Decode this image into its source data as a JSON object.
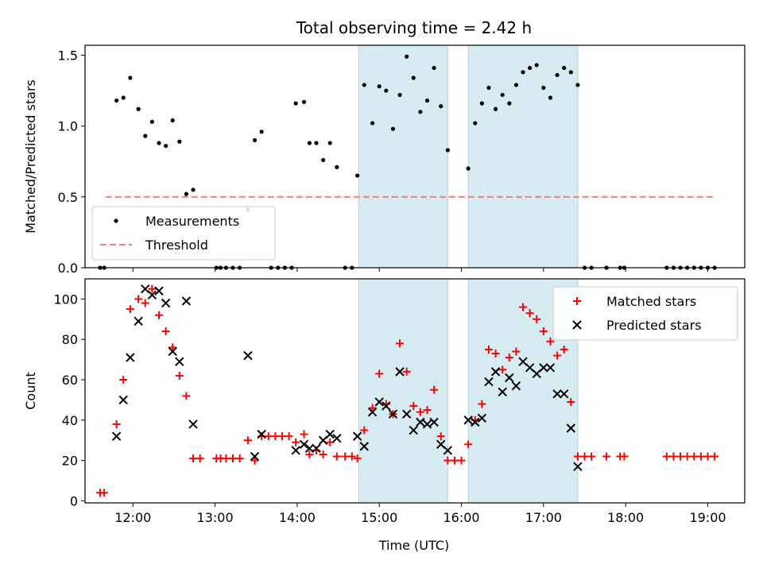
{
  "chart_data": {
    "type": "scatter",
    "title": "Total observing time = 2.42 h",
    "xlabel": "Time (UTC)",
    "x_ticks": [
      "12:00",
      "13:00",
      "14:00",
      "15:00",
      "16:00",
      "17:00",
      "18:00",
      "19:00"
    ],
    "xlim": [
      "11:25",
      "19:27"
    ],
    "shaded_intervals": [
      [
        "14:45",
        "15:50"
      ],
      [
        "16:05",
        "17:25"
      ]
    ],
    "shade_color": "#add8e6",
    "panels": [
      {
        "ylabel": "Matched/Predicted stars",
        "ylim": [
          0,
          1.57
        ],
        "y_ticks": [
          "0.0",
          "0.5",
          "1.0",
          "1.5"
        ],
        "threshold": 0.5,
        "threshold_color": "#f08080",
        "legend_position": "lower-left",
        "series": [
          {
            "name": "Measurements",
            "marker": "dot",
            "color": "#000000",
            "points": [
              [
                "11:36",
                0
              ],
              [
                "11:39",
                0
              ],
              [
                "11:48",
                1.18
              ],
              [
                "11:53",
                1.2
              ],
              [
                "11:58",
                1.34
              ],
              [
                "12:04",
                1.12
              ],
              [
                "12:09",
                0.93
              ],
              [
                "12:14",
                1.03
              ],
              [
                "12:19",
                0.88
              ],
              [
                "12:24",
                0.86
              ],
              [
                "12:29",
                1.04
              ],
              [
                "12:34",
                0.89
              ],
              [
                "12:39",
                0.52
              ],
              [
                "12:44",
                0.55
              ],
              [
                "13:01",
                0
              ],
              [
                "13:04",
                0
              ],
              [
                "13:08",
                0
              ],
              [
                "13:13",
                0
              ],
              [
                "13:18",
                0
              ],
              [
                "13:24",
                0.41
              ],
              [
                "13:29",
                0.9
              ],
              [
                "13:34",
                0.96
              ],
              [
                "13:41",
                0
              ],
              [
                "13:46",
                0
              ],
              [
                "13:51",
                0
              ],
              [
                "13:56",
                0
              ],
              [
                "13:59",
                1.16
              ],
              [
                "14:05",
                1.17
              ],
              [
                "14:09",
                0.88
              ],
              [
                "14:14",
                0.88
              ],
              [
                "14:19",
                0.76
              ],
              [
                "14:24",
                0.88
              ],
              [
                "14:29",
                0.71
              ],
              [
                "14:35",
                0
              ],
              [
                "14:40",
                0
              ],
              [
                "14:44",
                0.65
              ],
              [
                "14:49",
                1.29
              ],
              [
                "14:55",
                1.02
              ],
              [
                "15:00",
                1.28
              ],
              [
                "15:05",
                1.25
              ],
              [
                "15:10",
                0.98
              ],
              [
                "15:15",
                1.22
              ],
              [
                "15:20",
                1.49
              ],
              [
                "15:25",
                1.34
              ],
              [
                "15:30",
                1.1
              ],
              [
                "15:35",
                1.18
              ],
              [
                "15:40",
                1.41
              ],
              [
                "15:45",
                1.14
              ],
              [
                "15:50",
                0.83
              ],
              [
                "16:05",
                0.7
              ],
              [
                "16:10",
                1.02
              ],
              [
                "16:15",
                1.16
              ],
              [
                "16:20",
                1.27
              ],
              [
                "16:25",
                1.12
              ],
              [
                "16:30",
                1.22
              ],
              [
                "16:35",
                1.16
              ],
              [
                "16:40",
                1.29
              ],
              [
                "16:45",
                1.38
              ],
              [
                "16:50",
                1.41
              ],
              [
                "16:55",
                1.43
              ],
              [
                "17:00",
                1.27
              ],
              [
                "17:05",
                1.2
              ],
              [
                "17:10",
                1.36
              ],
              [
                "17:15",
                1.41
              ],
              [
                "17:20",
                1.38
              ],
              [
                "17:25",
                1.29
              ],
              [
                "17:30",
                0
              ],
              [
                "17:35",
                0
              ],
              [
                "17:46",
                0
              ],
              [
                "17:56",
                0
              ],
              [
                "17:59",
                0
              ],
              [
                "18:30",
                0
              ],
              [
                "18:35",
                0
              ],
              [
                "18:40",
                0
              ],
              [
                "18:45",
                0
              ],
              [
                "18:50",
                0
              ],
              [
                "18:55",
                0
              ],
              [
                "19:00",
                0
              ],
              [
                "19:05",
                0
              ]
            ]
          }
        ],
        "reference_lines": [
          {
            "name": "Threshold",
            "style": "dashed",
            "y": 0.5,
            "x_range": [
              "11:40",
              "19:05"
            ]
          }
        ]
      },
      {
        "ylabel": "Count",
        "ylim": [
          -1,
          110
        ],
        "y_ticks": [
          "0",
          "20",
          "40",
          "60",
          "80",
          "100"
        ],
        "legend_position": "upper-right",
        "series": [
          {
            "name": "Matched stars",
            "marker": "plus",
            "color": "#ff0000",
            "points": [
              [
                "11:36",
                4
              ],
              [
                "11:39",
                4
              ],
              [
                "11:48",
                38
              ],
              [
                "11:53",
                60
              ],
              [
                "11:58",
                95
              ],
              [
                "12:04",
                100
              ],
              [
                "12:09",
                98
              ],
              [
                "12:14",
                105
              ],
              [
                "12:19",
                92
              ],
              [
                "12:24",
                84
              ],
              [
                "12:29",
                76
              ],
              [
                "12:34",
                62
              ],
              [
                "12:39",
                52
              ],
              [
                "12:44",
                21
              ],
              [
                "12:49",
                21
              ],
              [
                "13:01",
                21
              ],
              [
                "13:04",
                21
              ],
              [
                "13:08",
                21
              ],
              [
                "13:13",
                21
              ],
              [
                "13:18",
                21
              ],
              [
                "13:24",
                30
              ],
              [
                "13:29",
                20
              ],
              [
                "13:34",
                32
              ],
              [
                "13:39",
                32
              ],
              [
                "13:44",
                32
              ],
              [
                "13:49",
                32
              ],
              [
                "13:54",
                32
              ],
              [
                "13:59",
                29
              ],
              [
                "14:05",
                33
              ],
              [
                "14:09",
                23
              ],
              [
                "14:14",
                25
              ],
              [
                "14:19",
                23
              ],
              [
                "14:24",
                29
              ],
              [
                "14:29",
                22
              ],
              [
                "14:35",
                22
              ],
              [
                "14:40",
                22
              ],
              [
                "14:44",
                21
              ],
              [
                "14:49",
                35
              ],
              [
                "14:55",
                46
              ],
              [
                "15:00",
                63
              ],
              [
                "15:05",
                48
              ],
              [
                "15:10",
                43
              ],
              [
                "15:15",
                78
              ],
              [
                "15:20",
                64
              ],
              [
                "15:25",
                47
              ],
              [
                "15:30",
                44
              ],
              [
                "15:35",
                45
              ],
              [
                "15:40",
                55
              ],
              [
                "15:45",
                32
              ],
              [
                "15:50",
                20
              ],
              [
                "15:55",
                20
              ],
              [
                "16:00",
                20
              ],
              [
                "16:05",
                28
              ],
              [
                "16:10",
                40
              ],
              [
                "16:15",
                48
              ],
              [
                "16:20",
                75
              ],
              [
                "16:25",
                73
              ],
              [
                "16:30",
                65
              ],
              [
                "16:35",
                71
              ],
              [
                "16:40",
                74
              ],
              [
                "16:45",
                96
              ],
              [
                "16:50",
                93
              ],
              [
                "16:55",
                90
              ],
              [
                "17:00",
                84
              ],
              [
                "17:05",
                79
              ],
              [
                "17:10",
                72
              ],
              [
                "17:15",
                75
              ],
              [
                "17:20",
                49
              ],
              [
                "17:25",
                22
              ],
              [
                "17:30",
                22
              ],
              [
                "17:35",
                22
              ],
              [
                "17:46",
                22
              ],
              [
                "17:56",
                22
              ],
              [
                "17:59",
                22
              ],
              [
                "18:30",
                22
              ],
              [
                "18:35",
                22
              ],
              [
                "18:40",
                22
              ],
              [
                "18:45",
                22
              ],
              [
                "18:50",
                22
              ],
              [
                "18:55",
                22
              ],
              [
                "19:00",
                22
              ],
              [
                "19:05",
                22
              ]
            ]
          },
          {
            "name": "Predicted stars",
            "marker": "x",
            "color": "#000000",
            "points": [
              [
                "11:48",
                32
              ],
              [
                "11:53",
                50
              ],
              [
                "11:58",
                71
              ],
              [
                "12:04",
                89
              ],
              [
                "12:09",
                105
              ],
              [
                "12:14",
                102
              ],
              [
                "12:19",
                104
              ],
              [
                "12:24",
                98
              ],
              [
                "12:29",
                74
              ],
              [
                "12:34",
                69
              ],
              [
                "12:39",
                99
              ],
              [
                "12:44",
                38
              ],
              [
                "13:24",
                72
              ],
              [
                "13:29",
                22
              ],
              [
                "13:34",
                33
              ],
              [
                "13:59",
                25
              ],
              [
                "14:05",
                28
              ],
              [
                "14:09",
                26
              ],
              [
                "14:14",
                26
              ],
              [
                "14:19",
                30
              ],
              [
                "14:24",
                33
              ],
              [
                "14:29",
                31
              ],
              [
                "14:44",
                32
              ],
              [
                "14:49",
                27
              ],
              [
                "14:55",
                44
              ],
              [
                "15:00",
                49
              ],
              [
                "15:05",
                47
              ],
              [
                "15:10",
                43
              ],
              [
                "15:15",
                64
              ],
              [
                "15:20",
                43
              ],
              [
                "15:25",
                35
              ],
              [
                "15:30",
                39
              ],
              [
                "15:35",
                38
              ],
              [
                "15:40",
                39
              ],
              [
                "15:45",
                28
              ],
              [
                "15:50",
                25
              ],
              [
                "16:05",
                40
              ],
              [
                "16:10",
                39
              ],
              [
                "16:15",
                41
              ],
              [
                "16:20",
                59
              ],
              [
                "16:25",
                64
              ],
              [
                "16:30",
                54
              ],
              [
                "16:35",
                61
              ],
              [
                "16:40",
                57
              ],
              [
                "16:45",
                69
              ],
              [
                "16:50",
                66
              ],
              [
                "16:55",
                63
              ],
              [
                "17:00",
                66
              ],
              [
                "17:05",
                66
              ],
              [
                "17:10",
                53
              ],
              [
                "17:15",
                53
              ],
              [
                "17:20",
                36
              ],
              [
                "17:25",
                17
              ]
            ]
          }
        ]
      }
    ]
  }
}
